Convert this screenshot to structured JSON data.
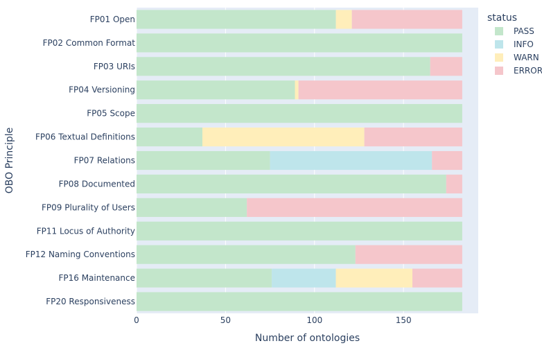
{
  "chart_data": {
    "type": "bar",
    "orientation": "horizontal",
    "barmode": "stack",
    "categories": [
      "FP01 Open",
      "FP02 Common Format",
      "FP03 URIs",
      "FP04 Versioning",
      "FP05 Scope",
      "FP06 Textual Definitions",
      "FP07 Relations",
      "FP08 Documented",
      "FP09 Plurality of Users",
      "FP11 Locus of Authority",
      "FP12 Naming Conventions",
      "FP16 Maintenance",
      "FP20 Responsiveness"
    ],
    "series": [
      {
        "name": "PASS",
        "color": "#c3e6cb",
        "values": [
          112,
          183,
          165,
          89,
          183,
          37,
          75,
          174,
          62,
          183,
          123,
          76,
          183
        ]
      },
      {
        "name": "INFO",
        "color": "#bee5eb",
        "values": [
          0,
          0,
          0,
          0,
          0,
          0,
          91,
          0,
          0,
          0,
          0,
          36,
          0
        ]
      },
      {
        "name": "WARN",
        "color": "#ffeeba",
        "values": [
          9,
          0,
          0,
          2,
          0,
          91,
          0,
          0,
          0,
          0,
          0,
          43,
          0
        ]
      },
      {
        "name": "ERROR",
        "color": "#f5c6cb",
        "values": [
          62,
          0,
          18,
          92,
          0,
          55,
          17,
          9,
          121,
          0,
          60,
          28,
          0
        ]
      }
    ],
    "xlabel": "Number of ontologies",
    "ylabel": "OBO Principle",
    "xlim": [
      0,
      192
    ],
    "xticks": [
      0,
      50,
      100,
      150
    ],
    "legend": {
      "title": "status",
      "placement": "top-right"
    },
    "grid": true,
    "plot_bg": "#e5ecf6"
  }
}
